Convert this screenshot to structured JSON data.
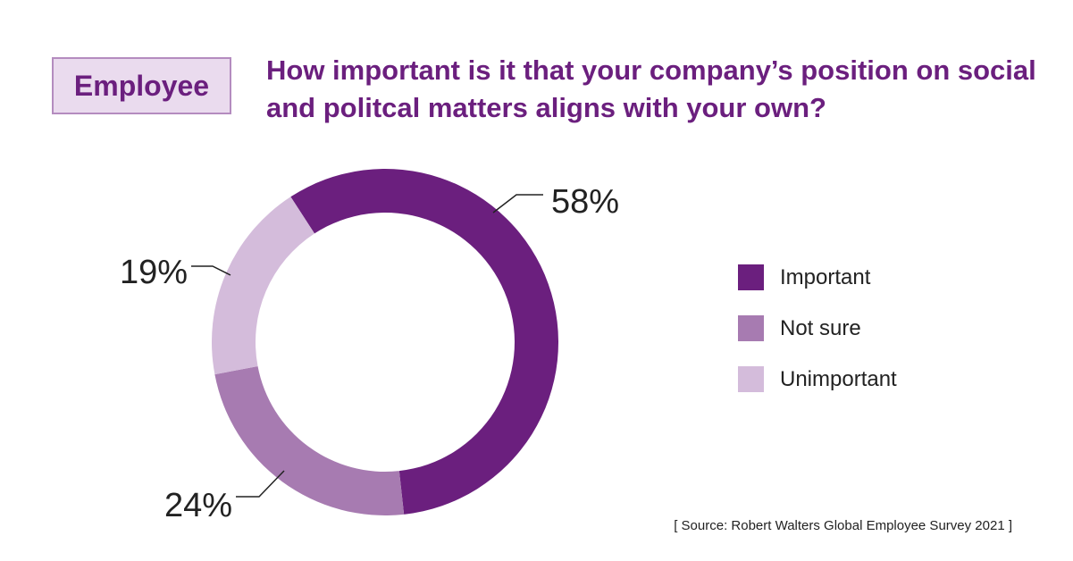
{
  "badge": "Employee",
  "title": "How important is it that your company’s position on social and politcal matters aligns with your own?",
  "source": "[ Source: Robert Walters Global Employee Survey 2021 ]",
  "chart_data": {
    "type": "pie",
    "variant": "donut",
    "title": "How important is it that your company’s position on social and politcal matters aligns with your own?",
    "categories": [
      "Important",
      "Not sure",
      "Unimportant"
    ],
    "values": [
      58,
      24,
      19
    ],
    "labels": [
      "58%",
      "24%",
      "19%"
    ],
    "colors": [
      "#6b1f7e",
      "#a77bb1",
      "#d4bcdb"
    ],
    "legend": "right"
  }
}
